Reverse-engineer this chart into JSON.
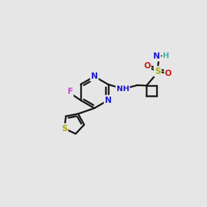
{
  "background_color": "#e6e6e6",
  "bond_color": "#1a1a1a",
  "bond_width": 1.8,
  "atom_colors": {
    "N": "#1a1acc",
    "S": "#aaaa00",
    "O": "#cc1a1a",
    "F": "#cc44cc",
    "H": "#44aaaa",
    "NH": "#1a1acc"
  },
  "figsize": [
    3.0,
    3.0
  ],
  "dpi": 100
}
